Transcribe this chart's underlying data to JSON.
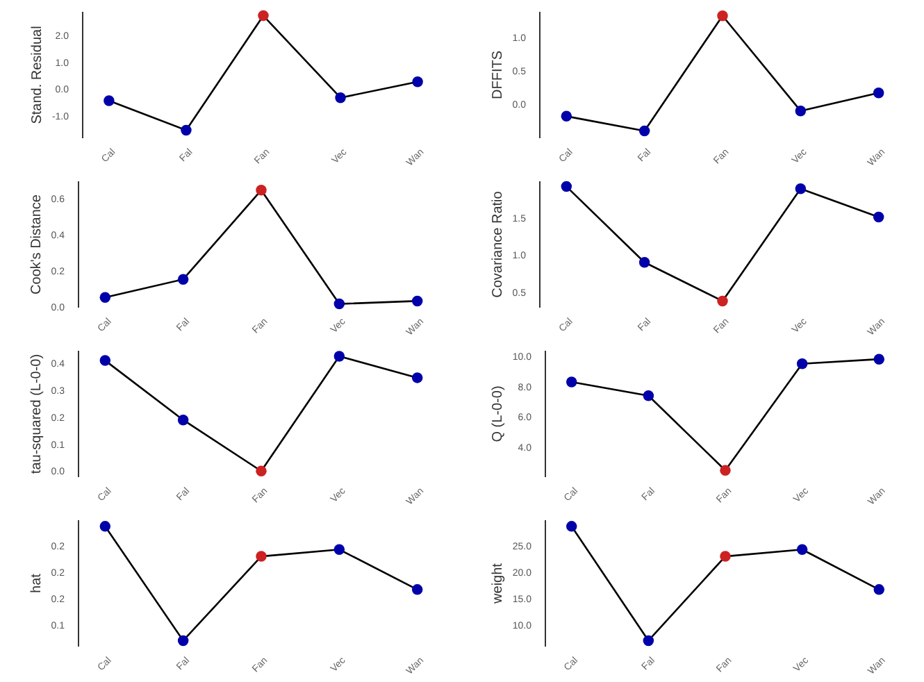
{
  "chart_data": [
    {
      "type": "line",
      "ylabel": "Stand. Residual",
      "categories": [
        "Cal",
        "Fal",
        "Fan",
        "Vec",
        "Wan"
      ],
      "values": [
        -0.43,
        -1.53,
        2.73,
        -0.32,
        0.27
      ],
      "color": "#000000",
      "colors": [
        "#0000aa",
        "#0000aa",
        "#cc2222",
        "#0000aa",
        "#0000aa"
      ],
      "marker": "circle",
      "ylim": [
        -1.8,
        2.9
      ],
      "yticks": [
        {
          "value": -1,
          "label": "-1.0"
        },
        {
          "value": 0,
          "label": "0.0"
        },
        {
          "value": 1,
          "label": "1.0"
        },
        {
          "value": 2,
          "label": "2.0"
        }
      ],
      "grid": false
    },
    {
      "type": "line",
      "ylabel": "DFFITS",
      "categories": [
        "Cal",
        "Fal",
        "Fan",
        "Vec",
        "Wan"
      ],
      "values": [
        -0.18,
        -0.4,
        1.33,
        -0.1,
        0.17
      ],
      "color": "#000000",
      "colors": [
        "#0000aa",
        "#0000aa",
        "#cc2222",
        "#0000aa",
        "#0000aa"
      ],
      "marker": "circle",
      "ylim": [
        -0.5,
        1.4
      ],
      "yticks": [
        {
          "value": 0,
          "label": "0.0"
        },
        {
          "value": 0.5,
          "label": "0.5"
        },
        {
          "value": 1,
          "label": "1.0"
        }
      ],
      "grid": false
    },
    {
      "type": "line",
      "ylabel": "Cook's Distance",
      "categories": [
        "Cal",
        "Fal",
        "Fan",
        "Vec",
        "Wan"
      ],
      "values": [
        0.053,
        0.153,
        0.647,
        0.017,
        0.033
      ],
      "color": "#000000",
      "colors": [
        "#0000aa",
        "#0000aa",
        "#cc2222",
        "#0000aa",
        "#0000aa"
      ],
      "marker": "circle",
      "ylim": [
        0,
        0.7
      ],
      "yticks": [
        {
          "value": 0,
          "label": "0.0"
        },
        {
          "value": 0.2,
          "label": "0.2"
        },
        {
          "value": 0.4,
          "label": "0.4"
        },
        {
          "value": 0.6,
          "label": "0.6"
        }
      ],
      "grid": false
    },
    {
      "type": "line",
      "ylabel": "Covariance Ratio",
      "categories": [
        "Cal",
        "Fal",
        "Fan",
        "Vec",
        "Wan"
      ],
      "values": [
        1.92,
        0.9,
        0.38,
        1.89,
        1.51
      ],
      "color": "#000000",
      "colors": [
        "#0000aa",
        "#0000aa",
        "#cc2222",
        "#0000aa",
        "#0000aa"
      ],
      "marker": "circle",
      "ylim": [
        0.3,
        2.0
      ],
      "yticks": [
        {
          "value": 0.5,
          "label": "0.5"
        },
        {
          "value": 1,
          "label": "1.0"
        },
        {
          "value": 1.5,
          "label": "1.5"
        }
      ],
      "grid": false
    },
    {
      "type": "line",
      "ylabel": "tau-squared (L-0-0)",
      "categories": [
        "Cal",
        "Fal",
        "Fan",
        "Vec",
        "Wan"
      ],
      "values": [
        0.411,
        0.19,
        0.0,
        0.427,
        0.347
      ],
      "color": "#000000",
      "colors": [
        "#0000aa",
        "#0000aa",
        "#cc2222",
        "#0000aa",
        "#0000aa"
      ],
      "marker": "circle",
      "ylim": [
        -0.02,
        0.45
      ],
      "yticks": [
        {
          "value": 0,
          "label": "0.0"
        },
        {
          "value": 0.1,
          "label": "0.1"
        },
        {
          "value": 0.2,
          "label": "0.2"
        },
        {
          "value": 0.3,
          "label": "0.3"
        },
        {
          "value": 0.4,
          "label": "0.4"
        }
      ],
      "grid": false
    },
    {
      "type": "line",
      "ylabel": "Q (L-0-0)",
      "categories": [
        "Cal",
        "Fal",
        "Fan",
        "Vec",
        "Wan"
      ],
      "values": [
        8.3,
        7.4,
        2.5,
        9.5,
        9.8
      ],
      "color": "#000000",
      "colors": [
        "#0000aa",
        "#0000aa",
        "#cc2222",
        "#0000aa",
        "#0000aa"
      ],
      "marker": "circle",
      "ylim": [
        2.1,
        10.4
      ],
      "yticks": [
        {
          "value": 4,
          "label": "4.0"
        },
        {
          "value": 6,
          "label": "6.0"
        },
        {
          "value": 8,
          "label": "8.0"
        },
        {
          "value": 10,
          "label": "10.0"
        }
      ],
      "grid": false
    },
    {
      "type": "line",
      "ylabel": "hat",
      "categories": [
        "Cal",
        "Fal",
        "Fan",
        "Vec",
        "Wan"
      ],
      "values": [
        0.287,
        0.07,
        0.23,
        0.243,
        0.167
      ],
      "color": "#000000",
      "colors": [
        "#0000aa",
        "#0000aa",
        "#cc2222",
        "#0000aa",
        "#0000aa"
      ],
      "marker": "circle",
      "ylim": [
        0.06,
        0.3
      ],
      "yticks": [
        {
          "value": 0.1,
          "label": "0.1"
        },
        {
          "value": 0.15,
          "label": "0.2"
        },
        {
          "value": 0.2,
          "label": "0.2"
        },
        {
          "value": 0.25,
          "label": "0.2"
        }
      ],
      "grid": false
    },
    {
      "type": "line",
      "ylabel": "weight",
      "categories": [
        "Cal",
        "Fal",
        "Fan",
        "Vec",
        "Wan"
      ],
      "values": [
        28.7,
        7.0,
        23.0,
        24.3,
        16.7
      ],
      "color": "#000000",
      "colors": [
        "#0000aa",
        "#0000aa",
        "#cc2222",
        "#0000aa",
        "#0000aa"
      ],
      "marker": "circle",
      "ylim": [
        6,
        30
      ],
      "yticks": [
        {
          "value": 10,
          "label": "10.0"
        },
        {
          "value": 15,
          "label": "15.0"
        },
        {
          "value": 20,
          "label": "20.0"
        },
        {
          "value": 25,
          "label": "25.0"
        }
      ],
      "grid": false
    }
  ]
}
